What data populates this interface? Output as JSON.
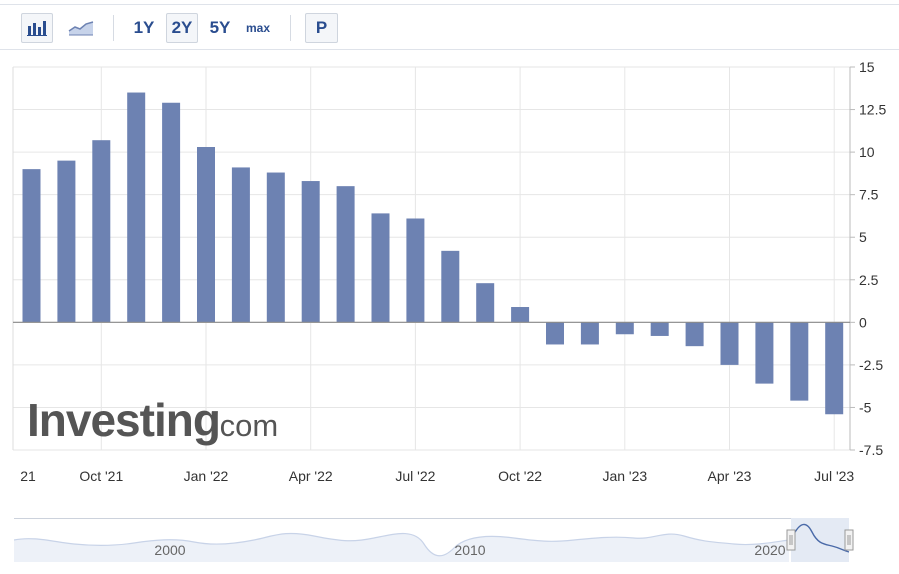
{
  "toolbar": {
    "chart_type_icons": [
      "bar-chart-icon",
      "area-chart-icon"
    ],
    "ranges": [
      "1Y",
      "2Y",
      "5Y",
      "max"
    ],
    "active_range": "2Y",
    "p_label": "P",
    "accent_color": "#2a4d8f"
  },
  "watermark": {
    "brand": "Investing",
    "suffix": ".com"
  },
  "chart_data": {
    "type": "bar",
    "categories": [
      "Aug 21",
      "Sep 21",
      "Oct 21",
      "Nov 21",
      "Dec 21",
      "Jan 22",
      "Feb 22",
      "Mar 22",
      "Apr 22",
      "May 22",
      "Jun 22",
      "Jul 22",
      "Aug 22",
      "Sep 22",
      "Oct 22",
      "Nov 22",
      "Dec 22",
      "Jan 23",
      "Feb 23",
      "Mar 23",
      "Apr 23",
      "May 23",
      "Jun 23",
      "Jul 23"
    ],
    "values": [
      9.0,
      9.5,
      10.7,
      13.5,
      12.9,
      10.3,
      9.1,
      8.8,
      8.3,
      8.0,
      6.4,
      6.1,
      4.2,
      2.3,
      0.9,
      -1.3,
      -1.3,
      -0.7,
      -0.8,
      -1.4,
      -2.5,
      -3.6,
      -4.6,
      -5.4
    ],
    "bar_color": "#6d82b2",
    "ylim": [
      -7.5,
      15
    ],
    "yticks": [
      "15",
      "12.5",
      "10",
      "7.5",
      "5",
      "2.5",
      "0",
      "-2.5",
      "-5",
      "-7.5"
    ],
    "ytick_values": [
      15,
      12.5,
      10,
      7.5,
      5,
      2.5,
      0,
      -2.5,
      -5,
      -7.5
    ],
    "xticks": [
      {
        "label": "21",
        "index": -0.1
      },
      {
        "label": "Oct '21",
        "index": 2
      },
      {
        "label": "Jan '22",
        "index": 5
      },
      {
        "label": "Apr '22",
        "index": 8
      },
      {
        "label": "Jul '22",
        "index": 11
      },
      {
        "label": "Oct '22",
        "index": 14
      },
      {
        "label": "Jan '23",
        "index": 17
      },
      {
        "label": "Apr '23",
        "index": 20
      },
      {
        "label": "Jul '23",
        "index": 23
      }
    ],
    "grid": true,
    "axis_side": "right"
  },
  "navigator": {
    "labels": [
      {
        "label": "2000",
        "year": 2000
      },
      {
        "label": "2010",
        "year": 2010
      },
      {
        "label": "2020",
        "year": 2020
      }
    ]
  }
}
